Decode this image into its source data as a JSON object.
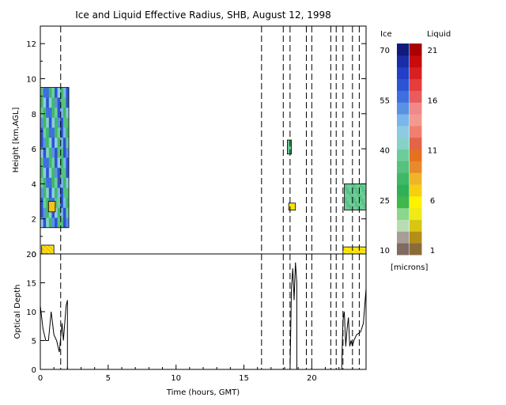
{
  "title": "Ice and Liquid Effective Radius, SHB, August 12, 1998",
  "colors": {
    "ice_scale": [
      "#7f6b5f",
      "#a89e95",
      "#b9ddb3",
      "#8ad78d",
      "#3fb74a",
      "#2fb056",
      "#40b868",
      "#57c17f",
      "#6dcc9b",
      "#87d2c6",
      "#8ccbe3",
      "#7ab6ea",
      "#5a92e3",
      "#3f6fde",
      "#2d53d5",
      "#233fc8",
      "#1a2da8",
      "#121b7b"
    ],
    "liquid_scale": [
      "#8a6c3b",
      "#b38f1a",
      "#d8c514",
      "#f0ea16",
      "#fff200",
      "#f6cf14",
      "#f0b42a",
      "#e98a2a",
      "#e57020",
      "#e46447",
      "#f08070",
      "#f39a8f",
      "#f08a8a",
      "#ea5b5b",
      "#e53c3c",
      "#d92020",
      "#c80b0b",
      "#a90000"
    ]
  },
  "chart_data": [
    {
      "type": "heatmap",
      "title": "Ice and Liquid Effective Radius, SHB, August 12, 1998",
      "xlabel": "",
      "ylabel": "Height [km,AGL]",
      "xlim": [
        0,
        24
      ],
      "ylim": [
        0,
        13
      ],
      "yticks": [
        0,
        2,
        4,
        6,
        8,
        10,
        12
      ],
      "ytick_labels": [
        "0",
        "2",
        "4",
        "6",
        "8",
        "10",
        "12"
      ],
      "dashed_vlines_hours": [
        1.5,
        16.3,
        17.9,
        18.4,
        19.6,
        20.0,
        21.4,
        21.8,
        22.3,
        23.0,
        23.5
      ],
      "ice_clouds": [
        {
          "t0": 0.0,
          "t1": 2.1,
          "z0": 1.5,
          "z1": 9.5,
          "r": [
            30,
            60
          ]
        },
        {
          "t0": 18.2,
          "t1": 18.5,
          "z0": 5.7,
          "z1": 6.5,
          "r": [
            35,
            40
          ]
        },
        {
          "t0": 22.4,
          "t1": 24.0,
          "z0": 2.5,
          "z1": 4.0,
          "r": [
            35,
            40
          ]
        }
      ],
      "liquid_clouds": [
        {
          "t0": 0.1,
          "t1": 1.0,
          "z0": 0.0,
          "z1": 0.5,
          "r": [
            6,
            8
          ]
        },
        {
          "t0": 0.6,
          "t1": 1.1,
          "z0": 2.4,
          "z1": 3.0,
          "r": [
            7,
            8
          ]
        },
        {
          "t0": 18.3,
          "t1": 18.8,
          "z0": 2.5,
          "z1": 2.9,
          "r": [
            6,
            7
          ]
        },
        {
          "t0": 22.3,
          "t1": 24.0,
          "z0": 0.0,
          "z1": 0.4,
          "r": [
            6,
            7
          ]
        }
      ]
    },
    {
      "type": "line",
      "xlabel": "Time (hours, GMT)",
      "ylabel": "Optical Depth",
      "xlim": [
        0,
        24
      ],
      "ylim": [
        0,
        20
      ],
      "xticks": [
        0,
        5,
        10,
        15,
        20
      ],
      "xtick_labels": [
        "0",
        "5",
        "10",
        "15",
        "20"
      ],
      "yticks": [
        0,
        5,
        10,
        15,
        20
      ],
      "ytick_labels": [
        "0",
        "5",
        "10",
        "15",
        "20"
      ],
      "dashed_vlines_hours": [
        1.5,
        16.3,
        17.9,
        18.4,
        19.6,
        20.0,
        21.4,
        21.8,
        22.3,
        23.0,
        23.5
      ],
      "series": [
        {
          "x": [
            0.0,
            0.2,
            0.4,
            0.6,
            0.8,
            1.0,
            1.2,
            1.4,
            1.6,
            1.7,
            1.9,
            2.0,
            2.0
          ],
          "y": [
            11.0,
            7.0,
            5.0,
            5.0,
            10.0,
            6.0,
            5.0,
            3.0,
            8.0,
            5.0,
            11.0,
            12.0,
            0.0
          ]
        },
        {
          "x": [
            18.4,
            18.5,
            18.6,
            18.7,
            18.8,
            18.9,
            18.9
          ],
          "y": [
            0.0,
            14.0,
            17.5,
            12.0,
            18.5,
            15.0,
            0.0
          ]
        },
        {
          "x": [
            22.2,
            22.3,
            22.4,
            22.5,
            22.6,
            22.7,
            22.8,
            22.9,
            23.0,
            23.1,
            23.3,
            23.6,
            23.8,
            24.0
          ],
          "y": [
            0.0,
            8.5,
            10.0,
            4.0,
            7.0,
            9.0,
            4.0,
            5.0,
            4.0,
            5.0,
            6.0,
            6.5,
            8.0,
            14.0
          ]
        }
      ]
    },
    {
      "type": "heatmap",
      "colorbar": true,
      "ice_label": "Ice",
      "liquid_label": "Liquid",
      "units": "[microns]",
      "ice_range": [
        10,
        70
      ],
      "liquid_range": [
        1,
        21
      ],
      "ice_tick_labels": [
        "70",
        "55",
        "40",
        "25",
        "10"
      ],
      "liquid_tick_labels": [
        "21",
        "16",
        "11",
        "6",
        "1"
      ]
    }
  ]
}
